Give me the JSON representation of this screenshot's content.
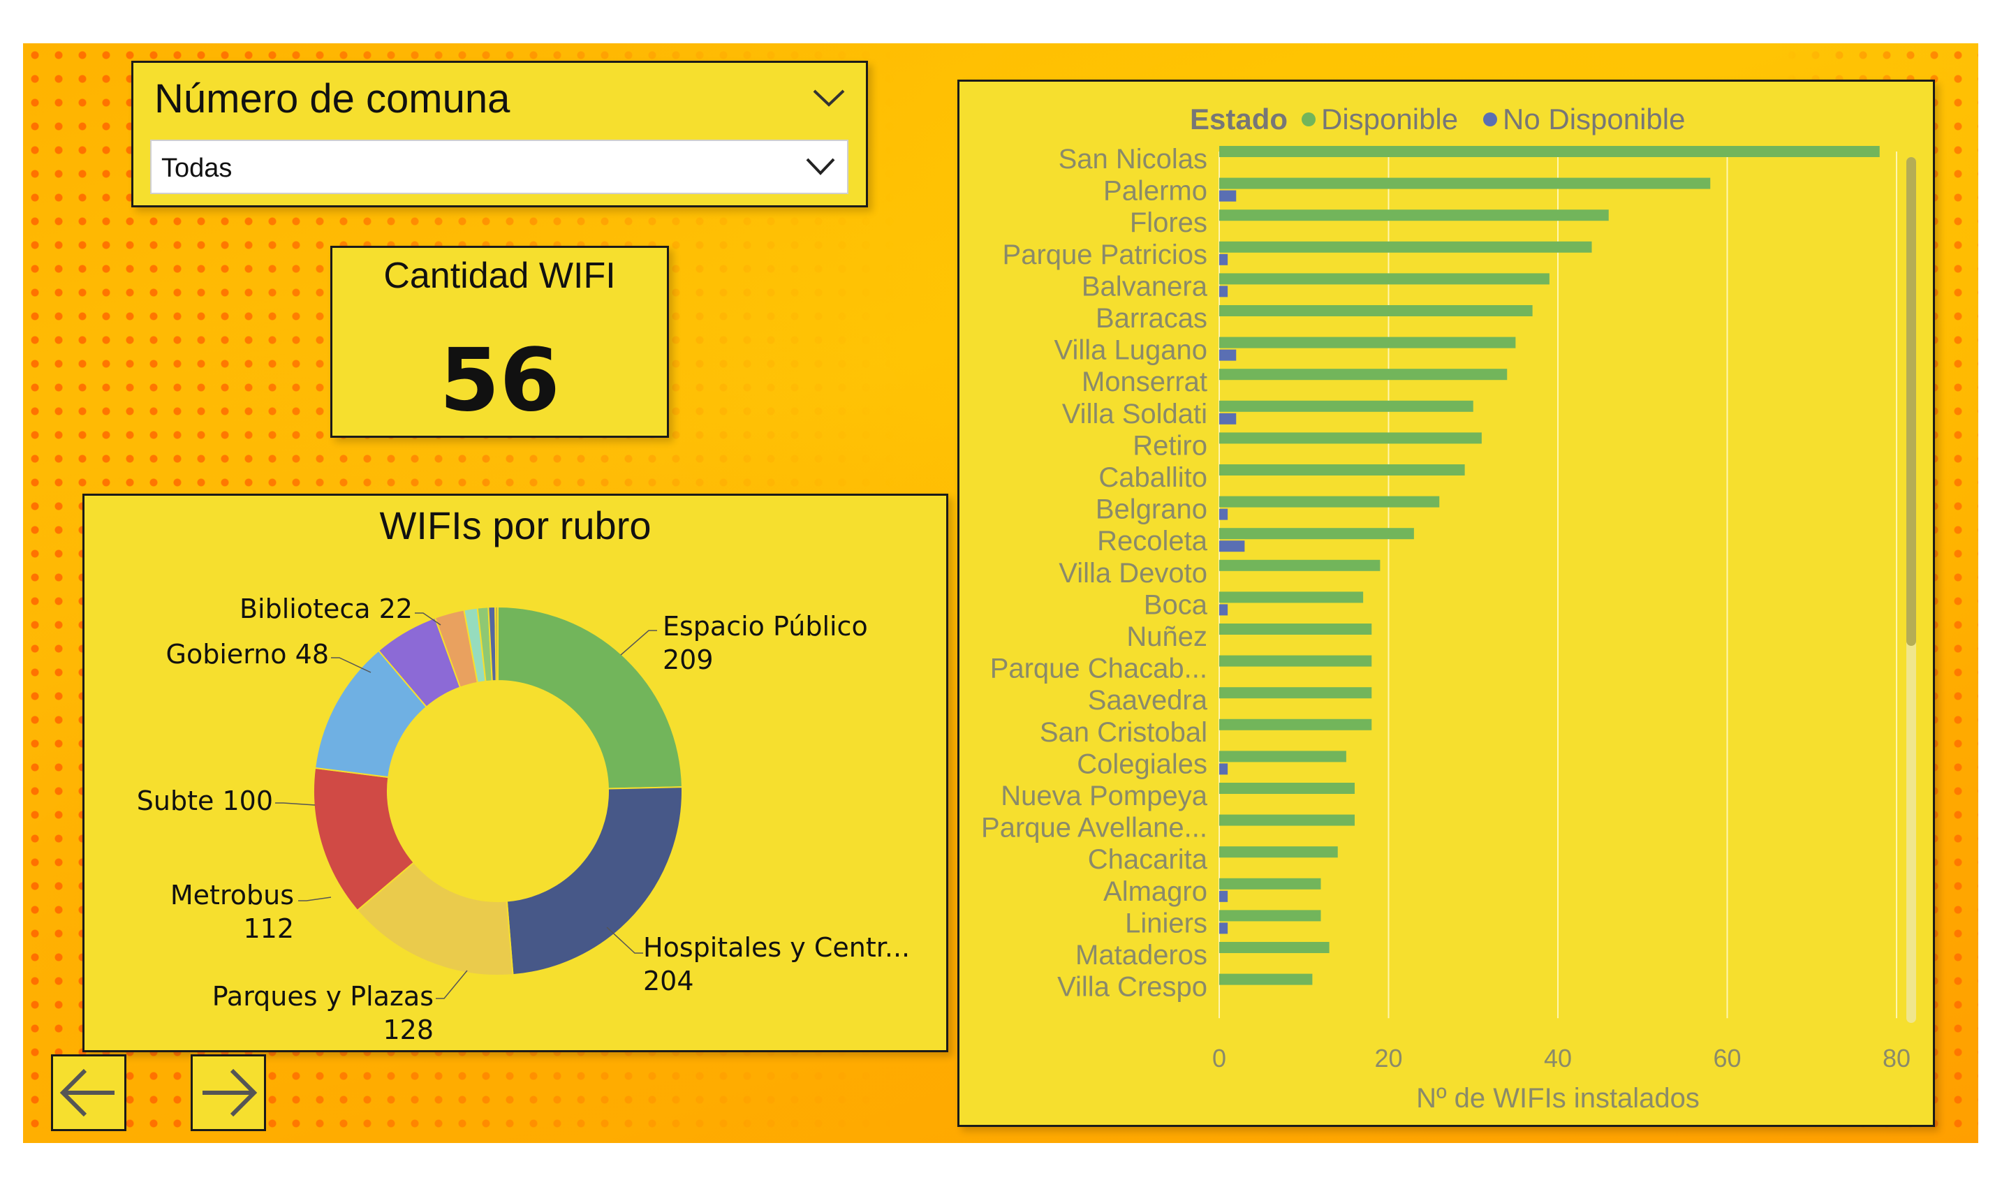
{
  "slicer": {
    "title": "Número de comuna",
    "selected": "Todas"
  },
  "card": {
    "label": "Cantidad WIFI",
    "value": "56"
  },
  "donut": {
    "title": "WIFIs por rubro",
    "segments": [
      {
        "name": "Espacio Público",
        "value": 209,
        "color": "#72b55b",
        "label_lines": [
          "Espacio Público",
          "209"
        ]
      },
      {
        "name": "Hospitales y Centr...",
        "value": 204,
        "color": "#475888",
        "label_lines": [
          "Hospitales y Centr...",
          "204"
        ]
      },
      {
        "name": "Parques y Plazas",
        "value": 128,
        "color": "#eacb4c",
        "label_lines": [
          "Parques y Plazas",
          "128"
        ]
      },
      {
        "name": "Metrobus",
        "value": 112,
        "color": "#d04a45",
        "label_lines": [
          "Metrobus",
          "112"
        ]
      },
      {
        "name": "Subte",
        "value": 100,
        "color": "#6fb0e3",
        "label_lines": [
          "Subte 100"
        ]
      },
      {
        "name": "Gobierno",
        "value": 48,
        "color": "#8c6ad6",
        "label_lines": [
          "Gobierno 48"
        ]
      },
      {
        "name": "Biblioteca",
        "value": 22,
        "color": "#e9a15f",
        "label_lines": [
          "Biblioteca 22"
        ]
      },
      {
        "name": "",
        "value": 10,
        "color": "#96dcbe",
        "label_lines": []
      },
      {
        "name": "",
        "value": 8,
        "color": "#8fc873",
        "label_lines": []
      },
      {
        "name": "",
        "value": 5,
        "color": "#5667a0",
        "label_lines": []
      },
      {
        "name": "",
        "value": 2,
        "color": "#c7b048",
        "label_lines": []
      }
    ]
  },
  "chart_data": {
    "type": "bar",
    "orientation": "horizontal",
    "legend_title": "Estado",
    "legend_position": "top",
    "xlabel": "Nº de WIFIs instalados",
    "xlim": [
      0,
      80
    ],
    "xticks": [
      0,
      20,
      40,
      60,
      80
    ],
    "grid": true,
    "categories": [
      "San Nicolas",
      "Palermo",
      "Flores",
      "Parque Patricios",
      "Balvanera",
      "Barracas",
      "Villa Lugano",
      "Monserrat",
      "Villa Soldati",
      "Retiro",
      "Caballito",
      "Belgrano",
      "Recoleta",
      "Villa Devoto",
      "Boca",
      "Nuñez",
      "Parque Chacab...",
      "Saavedra",
      "San Cristobal",
      "Colegiales",
      "Nueva Pompeya",
      "Parque Avellane...",
      "Chacarita",
      "Almagro",
      "Liniers",
      "Mataderos",
      "Villa Crespo"
    ],
    "series": [
      {
        "name": "Disponible",
        "color": "#72b55b",
        "values": [
          78,
          58,
          46,
          44,
          39,
          37,
          35,
          34,
          30,
          31,
          29,
          26,
          23,
          19,
          17,
          18,
          18,
          18,
          18,
          15,
          16,
          16,
          14,
          12,
          12,
          13,
          11
        ]
      },
      {
        "name": "No Disponible",
        "color": "#5a6fb3",
        "values": [
          0,
          2,
          0,
          1,
          1,
          0,
          2,
          0,
          2,
          0,
          0,
          1,
          3,
          0,
          1,
          0,
          0,
          0,
          0,
          1,
          0,
          0,
          0,
          1,
          1,
          0,
          0
        ]
      }
    ]
  },
  "colors": {
    "panel_bg": "#f6df2e",
    "axis_text": "#8a8a6a"
  },
  "nav": {
    "back_icon": "arrow-left-icon",
    "forward_icon": "arrow-right-icon"
  }
}
